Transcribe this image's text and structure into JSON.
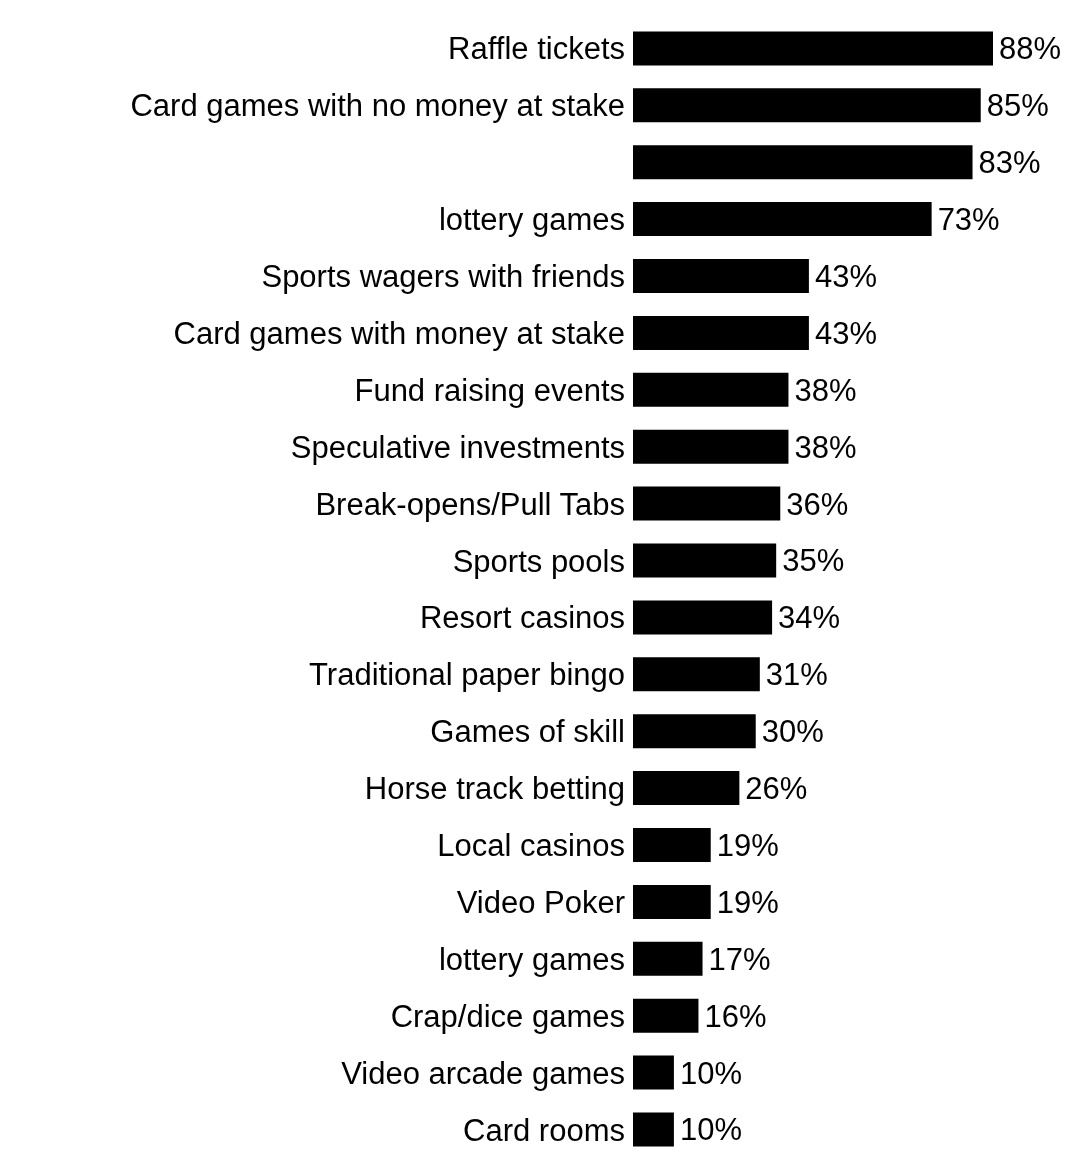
{
  "chart_data": {
    "type": "bar",
    "orientation": "horizontal",
    "color": "#000000",
    "categories": [
      "Raffle tickets",
      "Card games with no money at stake",
      null,
      "lottery games",
      "Sports wagers with friends",
      "Card games with money at stake",
      "Fund raising events",
      "Speculative investments",
      "Break-opens/Pull Tabs",
      "Sports pools",
      "Resort casinos",
      "Traditional paper bingo",
      "Games of skill",
      "Horse track betting",
      "Local casinos",
      "Video Poker",
      "lottery games",
      "Crap/dice games",
      "Video arcade games",
      "Card rooms"
    ],
    "values": [
      88,
      85,
      83,
      73,
      43,
      43,
      38,
      38,
      36,
      35,
      34,
      31,
      30,
      26,
      19,
      19,
      17,
      16,
      10,
      10
    ],
    "value_labels": [
      "88%",
      "85%",
      "83%",
      "73%",
      "43%",
      "43%",
      "38%",
      "38%",
      "36%",
      "35%",
      "34%",
      "31%",
      "30%",
      "26%",
      "19%",
      "19%",
      "17%",
      "16%",
      "10%",
      "10%"
    ]
  }
}
